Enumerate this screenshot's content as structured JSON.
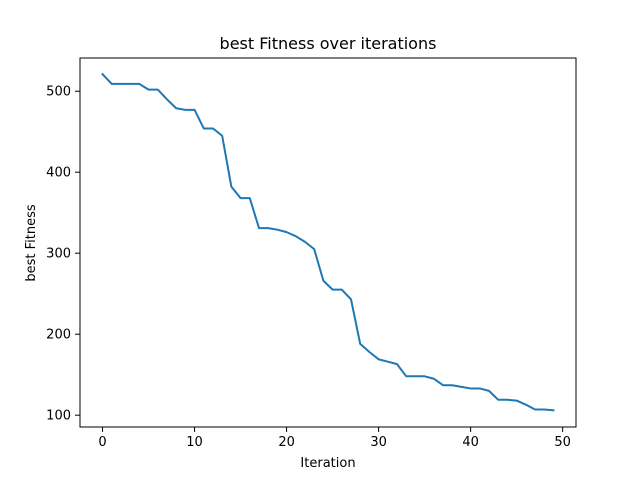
{
  "chart_data": {
    "type": "line",
    "title": "best Fitness over iterations",
    "xlabel": "Iteration",
    "ylabel": "best Fitness",
    "xlim": [
      -2.45,
      51.45
    ],
    "ylim": [
      85.4,
      541.0
    ],
    "xticks": [
      "0",
      "10",
      "20",
      "30",
      "40",
      "50"
    ],
    "yticks": [
      "100",
      "200",
      "300",
      "400",
      "500"
    ],
    "grid": false,
    "series": [
      {
        "color": "#1f77b4",
        "x": [
          0,
          1,
          2,
          3,
          4,
          5,
          6,
          7,
          8,
          9,
          10,
          11,
          12,
          13,
          14,
          15,
          16,
          17,
          18,
          19,
          20,
          21,
          22,
          23,
          24,
          25,
          26,
          27,
          28,
          29,
          30,
          31,
          32,
          33,
          34,
          35,
          36,
          37,
          38,
          39,
          40,
          41,
          42,
          43,
          44,
          45,
          46,
          47,
          48,
          49
        ],
        "y": [
          521,
          509,
          509,
          509,
          509,
          502,
          502,
          490,
          479,
          477,
          477,
          454,
          454,
          445,
          382,
          368,
          368,
          331,
          331,
          329,
          326,
          321,
          314,
          305,
          266,
          255,
          255,
          243,
          188,
          178,
          169,
          166,
          163,
          148,
          148,
          148,
          145,
          137,
          137,
          135,
          133,
          133,
          130,
          119,
          119,
          118,
          113,
          107,
          107,
          106
        ]
      }
    ]
  }
}
